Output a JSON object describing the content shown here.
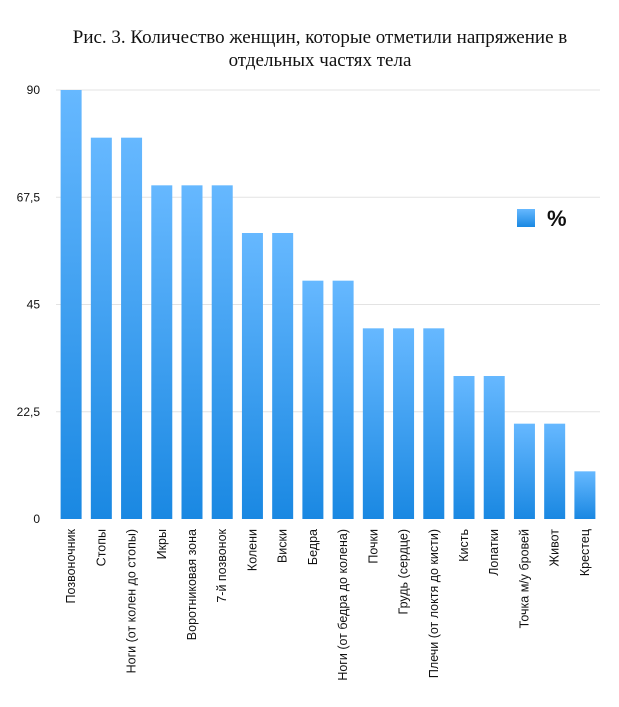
{
  "chart_data": {
    "type": "bar",
    "title": "Рис. 3. Количество женщин, которые отметили напряжение в отдельных частях тела",
    "xlabel": "",
    "ylabel": "",
    "categories": [
      "Позвоночник",
      "Стопы",
      "Ноги (от колен до стопы)",
      "Икры",
      "Воротниковая зона",
      "7-й позвонок",
      "Колени",
      "Виски",
      "Бедра",
      "Ноги (от бедра до колена)",
      "Почки",
      "Грудь (сердце)",
      "Плечи (от локтя до кисти)",
      "Кисть",
      "Лопатки",
      "Точка м/у бровей",
      "Живот",
      "Крестец"
    ],
    "series": [
      {
        "name": "%",
        "values": [
          90,
          80,
          80,
          70,
          70,
          70,
          60,
          60,
          50,
          50,
          40,
          40,
          40,
          30,
          30,
          20,
          20,
          10
        ]
      }
    ],
    "ylim": [
      0,
      90
    ],
    "yticks": [
      0,
      22.5,
      45,
      67.5,
      90
    ],
    "ytick_labels": [
      "0",
      "22,5",
      "45",
      "67,5",
      "90"
    ],
    "grid": true,
    "legend": "right",
    "colors": {
      "bar_top": "#66b8ff",
      "bar_bottom": "#1a88e2",
      "grid": "#e3e3e3",
      "text": "#111111"
    }
  }
}
